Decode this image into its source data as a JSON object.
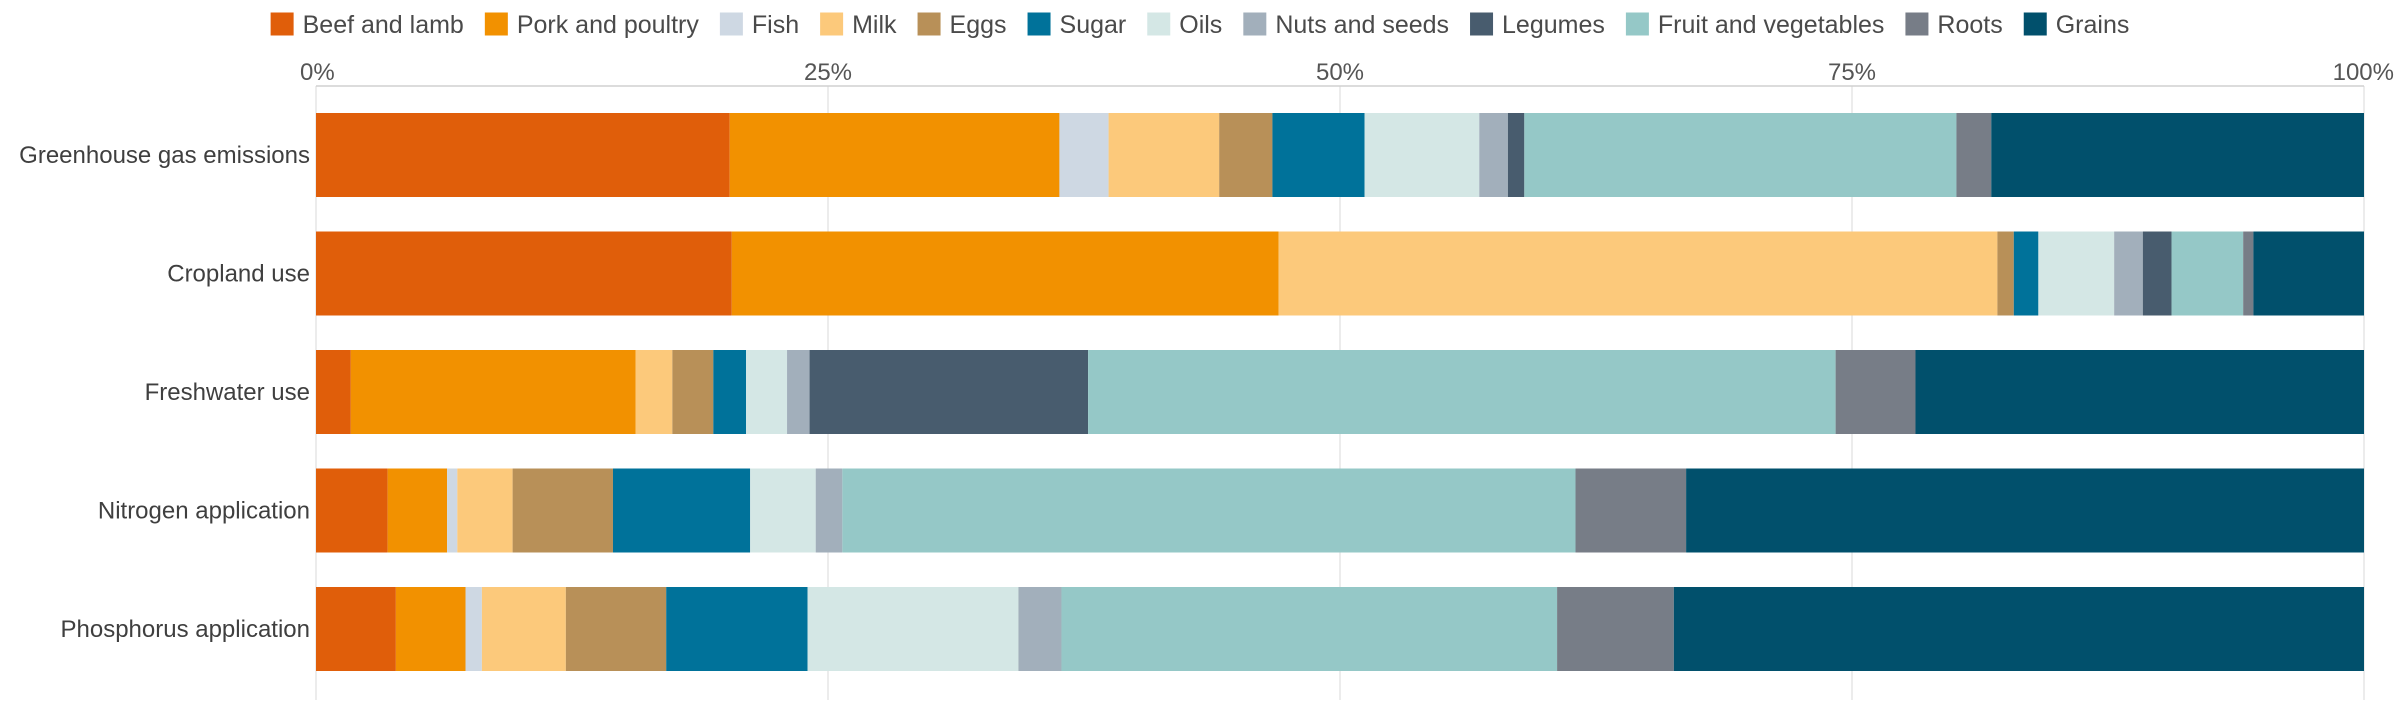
{
  "chart_data": {
    "type": "bar",
    "orientation": "horizontal",
    "stacked": true,
    "normalized": true,
    "categories": [
      "Greenhouse gas emissions",
      "Cropland use",
      "Freshwater use",
      "Nitrogen application",
      "Phosphorus application"
    ],
    "x_ticks": [
      "0%",
      "25%",
      "50%",
      "75%",
      "100%"
    ],
    "xlim": [
      0,
      100
    ],
    "x_axis_position": "top",
    "legend_position": "top",
    "grid": "vertical",
    "series": [
      {
        "name": "Beef and lamb",
        "color": "#e05e0a",
        "values": [
          20.2,
          20.3,
          1.7,
          3.5,
          3.9
        ]
      },
      {
        "name": "Pork and poultry",
        "color": "#f29100",
        "values": [
          16.1,
          26.7,
          13.9,
          2.9,
          3.4
        ]
      },
      {
        "name": "Fish",
        "color": "#ced8e3",
        "values": [
          2.4,
          0.0,
          0.0,
          0.5,
          0.8
        ]
      },
      {
        "name": "Milk",
        "color": "#fcc97b",
        "values": [
          5.4,
          35.1,
          1.8,
          2.7,
          4.1
        ]
      },
      {
        "name": "Eggs",
        "color": "#b89058",
        "values": [
          2.6,
          0.8,
          2.0,
          4.9,
          4.9
        ]
      },
      {
        "name": "Sugar",
        "color": "#00729a",
        "values": [
          4.5,
          1.2,
          1.6,
          6.7,
          6.9
        ]
      },
      {
        "name": "Oils",
        "color": "#d4e7e5",
        "values": [
          5.6,
          3.7,
          2.0,
          3.2,
          10.3
        ]
      },
      {
        "name": "Nuts and seeds",
        "color": "#a2afbb",
        "values": [
          1.4,
          1.4,
          1.1,
          1.3,
          2.1
        ]
      },
      {
        "name": "Legumes",
        "color": "#485c6e",
        "values": [
          0.8,
          1.4,
          13.6,
          0.0,
          0.0
        ]
      },
      {
        "name": "Fruit and vegetables",
        "color": "#95c8c7",
        "values": [
          21.1,
          3.5,
          36.5,
          35.8,
          24.2
        ]
      },
      {
        "name": "Roots",
        "color": "#777d87",
        "values": [
          1.7,
          0.5,
          3.9,
          5.4,
          5.7
        ]
      },
      {
        "name": "Grains",
        "color": "#01506c",
        "values": [
          18.2,
          5.4,
          21.9,
          33.1,
          33.7
        ]
      }
    ]
  }
}
